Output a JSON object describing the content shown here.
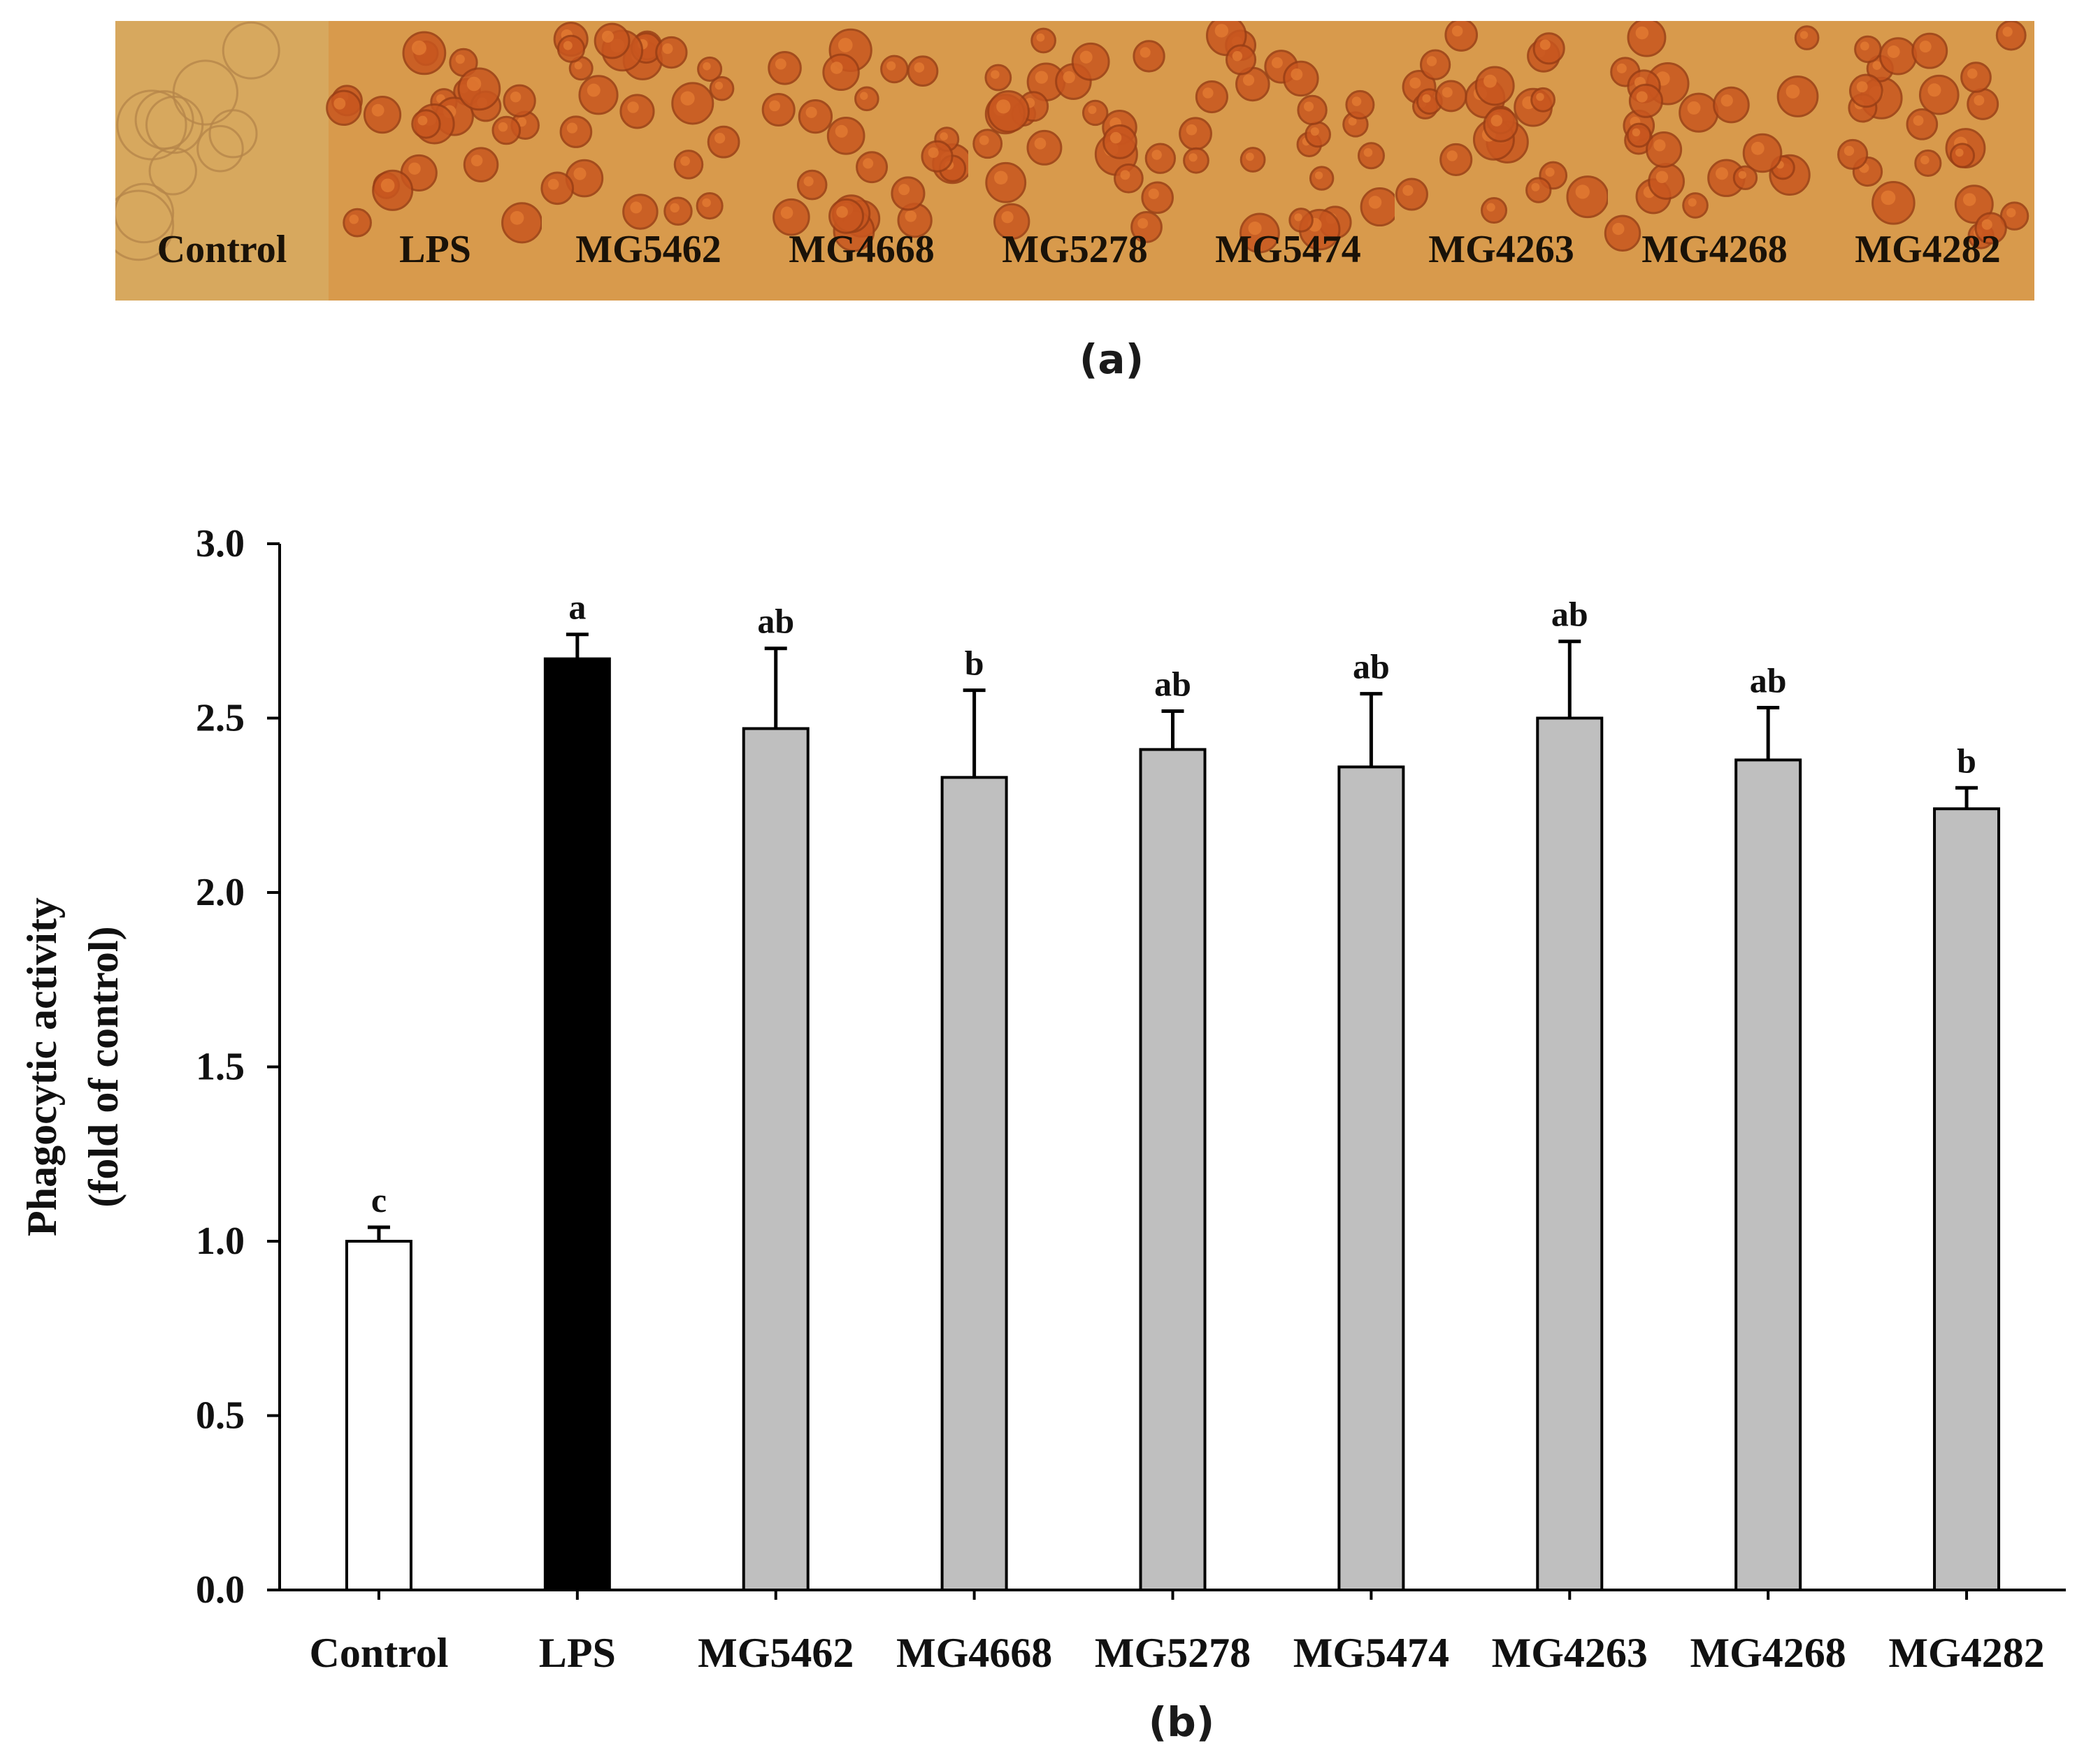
{
  "figure": {
    "panel_a_label": "(a)",
    "panel_b_label": "(b)"
  },
  "micrographs": {
    "labels": [
      "Control",
      "LPS",
      "MG5462",
      "MG4668",
      "MG5278",
      "MG5474",
      "MG4263",
      "MG4268",
      "MG4282"
    ],
    "colors": {
      "background": "#d89a4c",
      "control_background": "#d7a85e",
      "cell": "#c8561f",
      "cell_highlight": "#e27a32"
    }
  },
  "chart_data": {
    "type": "bar",
    "title": "",
    "xlabel": "",
    "ylabel_lines": [
      "Phagocytic activity",
      "(fold of control)"
    ],
    "ylim": [
      0,
      3.0
    ],
    "yticks": [
      "0.0",
      "0.5",
      "1.0",
      "1.5",
      "2.0",
      "2.5",
      "3.0"
    ],
    "categories": [
      "Control",
      "LPS",
      "MG5462",
      "MG4668",
      "MG5278",
      "MG5474",
      "MG4263",
      "MG4268",
      "MG4282"
    ],
    "values": [
      1.0,
      2.67,
      2.47,
      2.33,
      2.41,
      2.36,
      2.5,
      2.38,
      2.24
    ],
    "errors": [
      0.04,
      0.07,
      0.23,
      0.25,
      0.11,
      0.21,
      0.22,
      0.15,
      0.06
    ],
    "significance": [
      "c",
      "a",
      "ab",
      "b",
      "ab",
      "ab",
      "ab",
      "ab",
      "b"
    ],
    "bar_colors": [
      "#ffffff",
      "#000000",
      "#bfbfbf",
      "#bfbfbf",
      "#bfbfbf",
      "#bfbfbf",
      "#bfbfbf",
      "#bfbfbf",
      "#bfbfbf"
    ],
    "grid": false
  }
}
